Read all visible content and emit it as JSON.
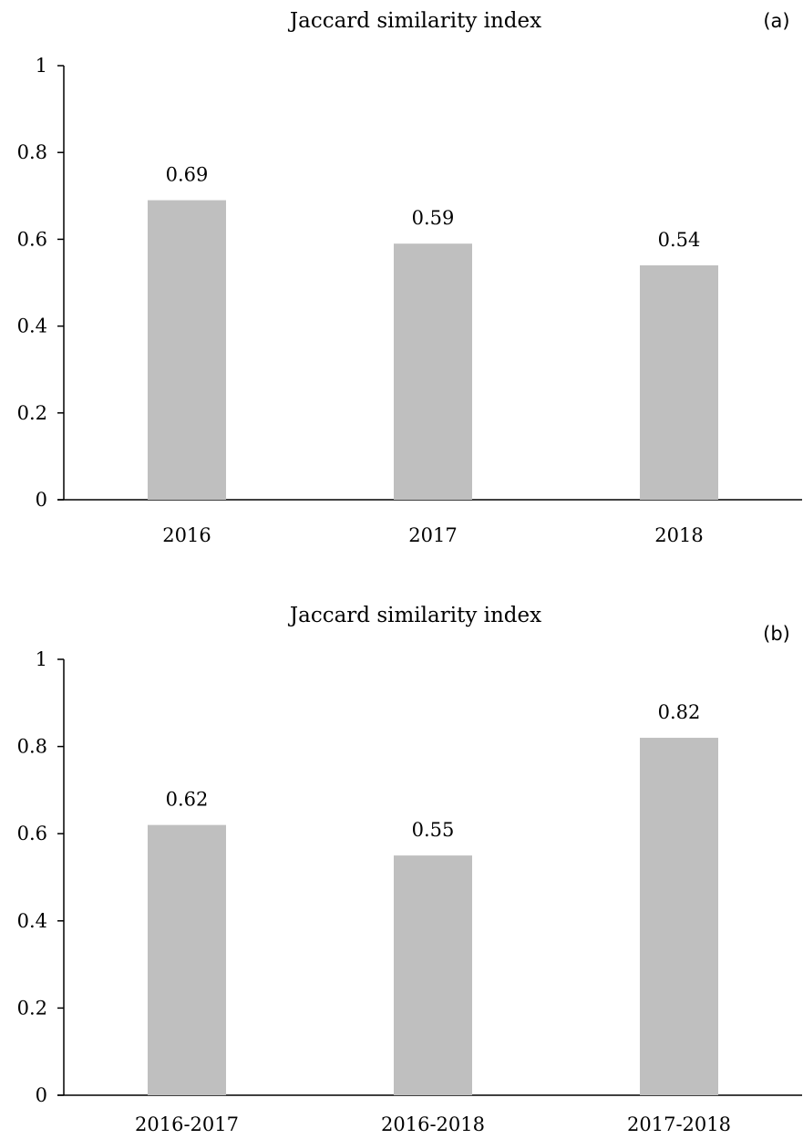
{
  "chart_data": [
    {
      "type": "bar",
      "title": "Jaccard similarity index",
      "panel_label": "(a)",
      "categories": [
        "2016",
        "2017",
        "2018"
      ],
      "values": [
        0.69,
        0.59,
        0.54
      ],
      "data_labels": [
        "0.69",
        "0.59",
        "0.54"
      ],
      "ylim": [
        0,
        1
      ],
      "yticks": [
        "0",
        "0.2",
        "0.4",
        "0.6",
        "0.8",
        "1"
      ],
      "bar_color": "#bfbfbf",
      "grid": false,
      "legend": "none"
    },
    {
      "type": "bar",
      "title": "Jaccard similarity index",
      "panel_label": "(b)",
      "categories": [
        "2016-2017",
        "2016-2018",
        "2017-2018"
      ],
      "values": [
        0.62,
        0.55,
        0.82
      ],
      "data_labels": [
        "0.62",
        "0.55",
        "0.82"
      ],
      "ylim": [
        0,
        1
      ],
      "yticks": [
        "0",
        "0.2",
        "0.4",
        "0.6",
        "0.8",
        "1"
      ],
      "bar_color": "#bfbfbf",
      "grid": false,
      "legend": "none"
    }
  ]
}
